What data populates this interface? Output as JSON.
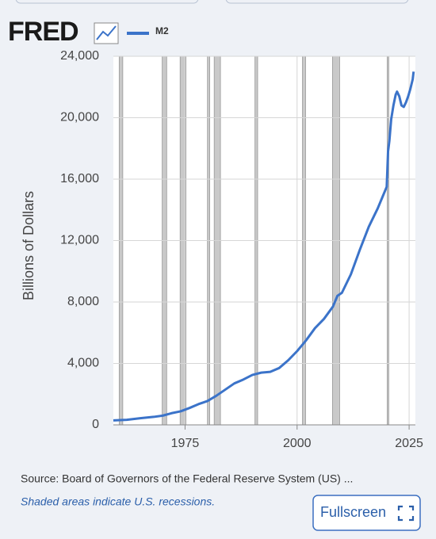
{
  "logo": "FRED",
  "button": "Fullscreen",
  "chart_data": {
    "type": "line",
    "y_label": "Billions of Dollars",
    "source": "Source: Board of Governors of the Federal Reserve System (US) ...",
    "note": "Shaded areas indicate U.S. recessions.",
    "x": [
      1959,
      1962,
      1965,
      1968,
      1970,
      1972,
      1974,
      1976,
      1978,
      1980,
      1982,
      1984,
      1986,
      1988,
      1990,
      1992,
      1994,
      1996,
      1998,
      2000,
      2002,
      2004,
      2006,
      2008,
      2009,
      2010,
      2012,
      2014,
      2016,
      2018,
      2019,
      2020,
      2020.3,
      2020.6,
      2021,
      2021.5,
      2022,
      2022.3,
      2022.8,
      2023.3,
      2023.8,
      2024.3,
      2024.8,
      2025.3,
      2025.8,
      2026
    ],
    "series": [
      {
        "name": "M2",
        "color": "#3b73c9",
        "values": [
          290,
          330,
          430,
          520,
          600,
          760,
          880,
          1100,
          1350,
          1550,
          1900,
          2300,
          2700,
          2950,
          3250,
          3400,
          3450,
          3700,
          4200,
          4800,
          5500,
          6300,
          6900,
          7700,
          8400,
          8600,
          9800,
          11400,
          12900,
          14100,
          14800,
          15500,
          17800,
          18500,
          19900,
          20800,
          21500,
          21700,
          21400,
          20800,
          20700,
          21000,
          21400,
          21900,
          22500,
          23000
        ]
      }
    ],
    "recessions": [
      [
        1960.3,
        1961.1
      ],
      [
        1969.9,
        1970.9
      ],
      [
        1973.9,
        1975.2
      ],
      [
        1980.0,
        1980.5
      ],
      [
        1981.5,
        1982.9
      ],
      [
        1990.6,
        1991.2
      ],
      [
        2001.2,
        2001.9
      ],
      [
        2007.9,
        2009.5
      ],
      [
        2020.1,
        2020.3
      ]
    ],
    "recession_color": "#c9c9c9",
    "xlim": [
      1959,
      2026.4
    ],
    "ylim": [
      0,
      24000
    ],
    "xticks": [
      1975,
      2000,
      2025
    ],
    "yticks": [
      0,
      {
        "value": 4000,
        "label": "4,000"
      },
      {
        "value": 8000,
        "label": "8,000"
      },
      {
        "value": 12000,
        "label": "12,000"
      },
      {
        "value": 16000,
        "label": "16,000"
      },
      {
        "value": 20000,
        "label": "20,000"
      },
      {
        "value": 24000,
        "label": "24,000"
      }
    ],
    "grid": true
  }
}
